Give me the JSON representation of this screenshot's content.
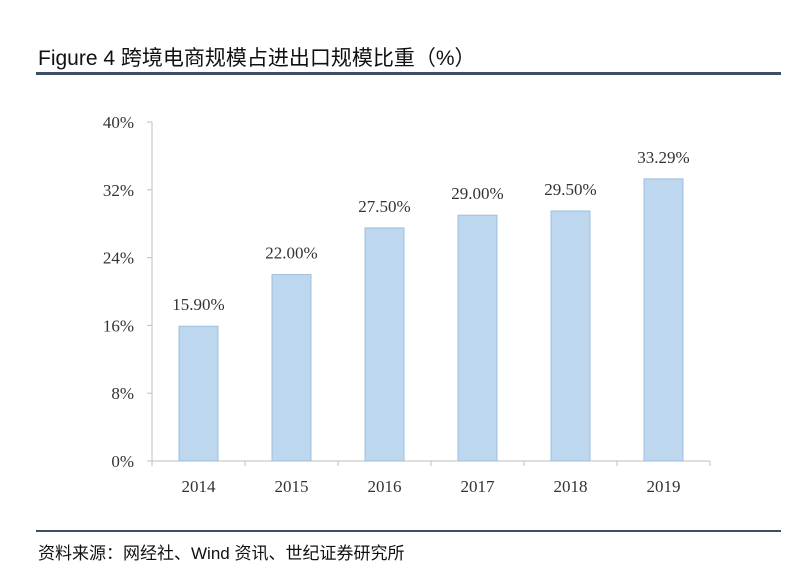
{
  "figure": {
    "title": "Figure 4 跨境电商规模占进出口规模比重（%）",
    "source": "资料来源：网经社、Wind 资讯、世纪证券研究所"
  },
  "colors": {
    "bar_fill": "#bdd7ee",
    "bar_stroke": "#9dbfdf",
    "axis": "#bfbfbf",
    "rule": "#3a4f66"
  },
  "chart_data": {
    "type": "bar",
    "categories": [
      "2014",
      "2015",
      "2016",
      "2017",
      "2018",
      "2019"
    ],
    "values": [
      15.9,
      22.0,
      27.5,
      29.0,
      29.5,
      33.29
    ],
    "data_labels": [
      "15.90%",
      "22.00%",
      "27.50%",
      "29.00%",
      "29.50%",
      "33.29%"
    ],
    "ylim": [
      0,
      40
    ],
    "yticks": [
      0,
      8,
      16,
      24,
      32,
      40
    ],
    "ytick_labels": [
      "0%",
      "8%",
      "16%",
      "24%",
      "32%",
      "40%"
    ],
    "grid": false,
    "legend": "none"
  }
}
